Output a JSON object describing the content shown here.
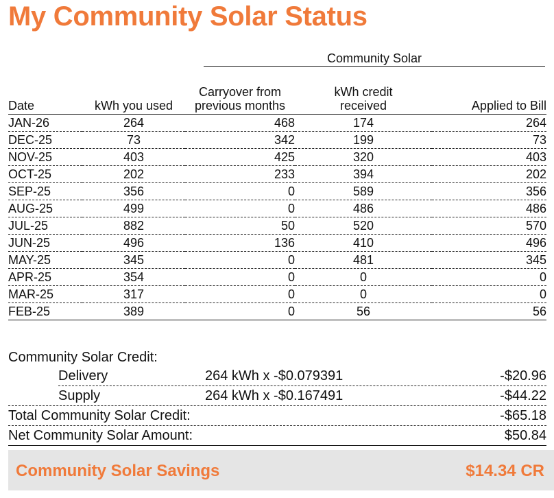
{
  "title": "My Community Solar Status",
  "table": {
    "group_header": "Community Solar",
    "columns": [
      {
        "label": "Date"
      },
      {
        "label": "kWh you used"
      },
      {
        "label_line1": "Carryover from",
        "label_line2": "previous months"
      },
      {
        "label_line1": "kWh credit",
        "label_line2": "received"
      },
      {
        "label": "Applied to Bill"
      }
    ],
    "rows": [
      {
        "date": "JAN-26",
        "used": "264",
        "carryover": "468",
        "credit": "174",
        "applied": "264"
      },
      {
        "date": "DEC-25",
        "used": "73",
        "carryover": "342",
        "credit": "199",
        "applied": "73"
      },
      {
        "date": "NOV-25",
        "used": "403",
        "carryover": "425",
        "credit": "320",
        "applied": "403"
      },
      {
        "date": "OCT-25",
        "used": "202",
        "carryover": "233",
        "credit": "394",
        "applied": "202"
      },
      {
        "date": "SEP-25",
        "used": "356",
        "carryover": "0",
        "credit": "589",
        "applied": "356"
      },
      {
        "date": "AUG-25",
        "used": "499",
        "carryover": "0",
        "credit": "486",
        "applied": "486"
      },
      {
        "date": "JUL-25",
        "used": "882",
        "carryover": "50",
        "credit": "520",
        "applied": "570"
      },
      {
        "date": "JUN-25",
        "used": "496",
        "carryover": "136",
        "credit": "410",
        "applied": "496"
      },
      {
        "date": "MAY-25",
        "used": "345",
        "carryover": "0",
        "credit": "481",
        "applied": "345"
      },
      {
        "date": "APR-25",
        "used": "354",
        "carryover": "0",
        "credit": "0",
        "applied": "0"
      },
      {
        "date": "MAR-25",
        "used": "317",
        "carryover": "0",
        "credit": "0",
        "applied": "0"
      },
      {
        "date": "FEB-25",
        "used": "389",
        "carryover": "0",
        "credit": "56",
        "applied": "56"
      }
    ]
  },
  "credit": {
    "heading": "Community Solar Credit:",
    "delivery": {
      "label": "Delivery",
      "calc": "264 kWh x -$0.079391",
      "amount": "-$20.96"
    },
    "supply": {
      "label": "Supply",
      "calc": "264 kWh x -$0.167491",
      "amount": "-$44.22"
    },
    "total": {
      "label": "Total Community Solar Credit:",
      "amount": "-$65.18"
    },
    "net": {
      "label": "Net Community Solar Amount:",
      "amount": "$50.84"
    }
  },
  "savings": {
    "label": "Community Solar Savings",
    "value": "$14.34 CR"
  },
  "colors": {
    "accent": "#F07A3A",
    "banner_bg": "#E5E5E5",
    "text": "#111111"
  }
}
